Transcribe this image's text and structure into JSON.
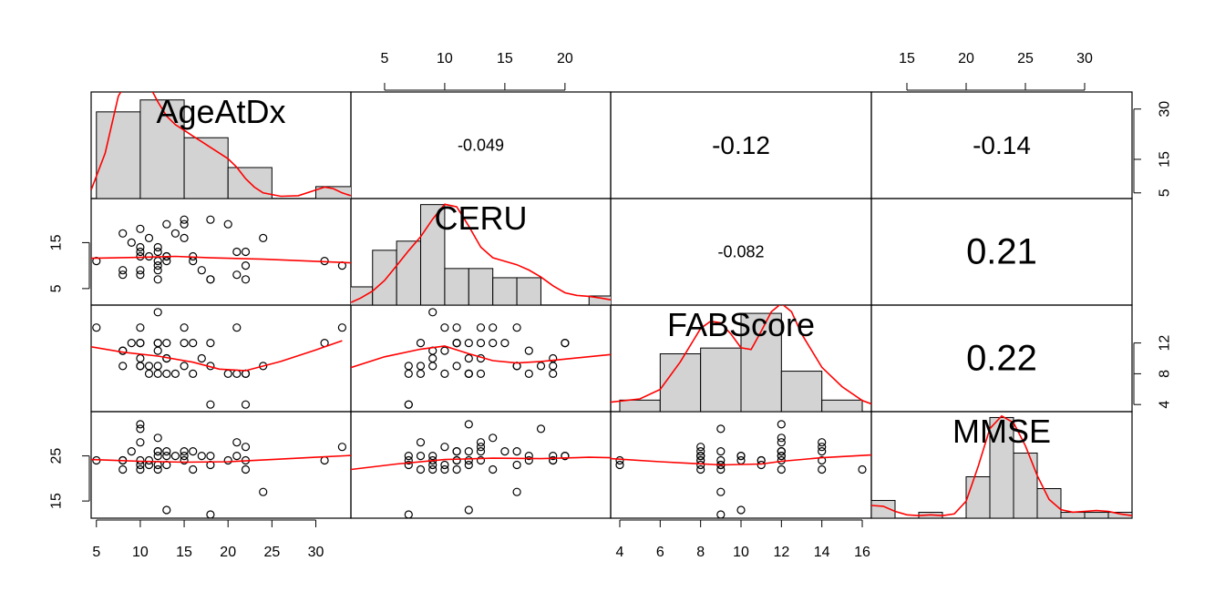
{
  "chart_data": {
    "type": "scatter-matrix",
    "variables": [
      {
        "name": "AgeAtDx",
        "range": [
          4.4,
          34.0
        ]
      },
      {
        "name": "CERU",
        "range": [
          2.2,
          23.8
        ]
      },
      {
        "name": "FABScore",
        "range": [
          3.55,
          16.45
        ]
      },
      {
        "name": "MMSE",
        "range": [
          12.0,
          34.0
        ]
      }
    ],
    "axis_ticks": {
      "AgeAtDx": {
        "values": [
          5,
          10,
          15,
          20,
          25,
          30
        ],
        "labels": [
          "5",
          "10",
          "15",
          "20",
          "25",
          "30"
        ]
      },
      "CERU": {
        "values": [
          5,
          10,
          15,
          20
        ],
        "labels": [
          "5",
          "10",
          "15",
          "20"
        ]
      },
      "FABScore": {
        "values": [
          4,
          6,
          8,
          10,
          12,
          14,
          16
        ],
        "labels": [
          "4",
          "6",
          "8",
          "10",
          "12",
          "14",
          "16"
        ]
      },
      "MMSE": {
        "values": [
          15,
          20,
          25,
          30
        ],
        "labels": [
          "15",
          "20",
          "25",
          "30"
        ]
      }
    },
    "side_ticks": {
      "AgeAtDx": {
        "values": [
          5,
          15,
          25
        ],
        "labels": [
          "5",
          "15",
          "25"
        ]
      },
      "CERU": {
        "values": [
          5,
          15
        ],
        "labels": [
          "5",
          "15"
        ]
      },
      "FABScore": {
        "values": [
          4,
          8,
          12
        ],
        "labels": [
          "4",
          "8",
          "12"
        ]
      },
      "MMSE": {
        "values": [
          15,
          25
        ],
        "labels": [
          "15",
          "25"
        ]
      }
    },
    "right_ticks": {
      "AgeAtDx": {
        "values": [
          5,
          15,
          30
        ],
        "labels": [
          "5",
          "15",
          "30"
        ]
      },
      "FABScore": {
        "values": [
          4,
          8,
          12
        ],
        "labels": [
          "4",
          "8",
          "12"
        ]
      }
    },
    "correlations": [
      {
        "row": 0,
        "col": 1,
        "label": "-0.049"
      },
      {
        "row": 0,
        "col": 2,
        "label": "-0.12"
      },
      {
        "row": 0,
        "col": 3,
        "label": "-0.14"
      },
      {
        "row": 1,
        "col": 2,
        "label": "-0.082"
      },
      {
        "row": 1,
        "col": 3,
        "label": "0.21"
      },
      {
        "row": 2,
        "col": 3,
        "label": "0.22"
      }
    ],
    "histograms": [
      {
        "breaks": [
          5,
          10,
          15,
          20,
          25,
          30,
          35
        ],
        "density": [
          0.0305,
          0.0347,
          0.0214,
          0.0109,
          0.0,
          0.0042
        ]
      },
      {
        "breaks": [
          2,
          4,
          6,
          8,
          10,
          12,
          14,
          16,
          18,
          20,
          22,
          24
        ],
        "density": [
          0.0208,
          0.0625,
          0.0729,
          0.1146,
          0.0417,
          0.0417,
          0.0312,
          0.0312,
          0.0,
          0.0,
          0.0104
        ]
      },
      {
        "breaks": [
          4,
          6,
          8,
          10,
          12,
          14,
          16
        ],
        "density": [
          0.0208,
          0.1042,
          0.1146,
          0.1771,
          0.0729,
          0.0208
        ]
      },
      {
        "breaks": [
          12,
          14,
          16,
          18,
          20,
          22,
          24,
          26,
          28,
          30,
          32,
          34
        ],
        "density": [
          0.0208,
          0.0,
          0.0069,
          0.0,
          0.0486,
          0.1181,
          0.0764,
          0.0347,
          0.0069,
          0.0069,
          0.0069
        ]
      }
    ],
    "density_curves": [
      [
        [
          4.4,
          0.003
        ],
        [
          6,
          0.016
        ],
        [
          7.5,
          0.036
        ],
        [
          9,
          0.044
        ],
        [
          10,
          0.044
        ],
        [
          11,
          0.04
        ],
        [
          12,
          0.034
        ],
        [
          13,
          0.029
        ],
        [
          14,
          0.026
        ],
        [
          15,
          0.024
        ],
        [
          16,
          0.022
        ],
        [
          17,
          0.02
        ],
        [
          18,
          0.018
        ],
        [
          19,
          0.016
        ],
        [
          20,
          0.014
        ],
        [
          21,
          0.011
        ],
        [
          22,
          0.007
        ],
        [
          23,
          0.004
        ],
        [
          24,
          0.002
        ],
        [
          26,
          0.0008
        ],
        [
          28,
          0.001
        ],
        [
          30,
          0.003
        ],
        [
          31,
          0.004
        ],
        [
          32,
          0.0035
        ],
        [
          33,
          0.002
        ],
        [
          34,
          0.001
        ]
      ],
      [
        [
          2.2,
          0.003
        ],
        [
          3,
          0.008
        ],
        [
          4,
          0.016
        ],
        [
          5,
          0.028
        ],
        [
          6,
          0.045
        ],
        [
          7,
          0.062
        ],
        [
          8,
          0.078
        ],
        [
          9,
          0.098
        ],
        [
          10,
          0.115
        ],
        [
          11,
          0.112
        ],
        [
          12,
          0.09
        ],
        [
          13,
          0.066
        ],
        [
          14,
          0.054
        ],
        [
          15,
          0.05
        ],
        [
          16,
          0.046
        ],
        [
          17,
          0.04
        ],
        [
          18,
          0.032
        ],
        [
          19,
          0.022
        ],
        [
          20,
          0.014
        ],
        [
          21,
          0.011
        ],
        [
          22,
          0.01
        ],
        [
          23,
          0.008
        ],
        [
          23.8,
          0.006
        ]
      ],
      [
        [
          3.55,
          0.017
        ],
        [
          5,
          0.023
        ],
        [
          6,
          0.04
        ],
        [
          7,
          0.09
        ],
        [
          8,
          0.15
        ],
        [
          8.5,
          0.163
        ],
        [
          9,
          0.16
        ],
        [
          9.5,
          0.14
        ],
        [
          10,
          0.115
        ],
        [
          10.5,
          0.112
        ],
        [
          11,
          0.145
        ],
        [
          11.5,
          0.18
        ],
        [
          12,
          0.195
        ],
        [
          12.5,
          0.18
        ],
        [
          13,
          0.14
        ],
        [
          14,
          0.08
        ],
        [
          15,
          0.045
        ],
        [
          16,
          0.02
        ],
        [
          16.45,
          0.014
        ]
      ],
      [
        [
          12,
          0.015
        ],
        [
          13,
          0.014
        ],
        [
          14,
          0.008
        ],
        [
          15,
          0.004
        ],
        [
          16,
          0.003
        ],
        [
          17,
          0.004
        ],
        [
          18,
          0.003
        ],
        [
          19,
          0.005
        ],
        [
          20,
          0.02
        ],
        [
          21,
          0.06
        ],
        [
          22,
          0.105
        ],
        [
          23,
          0.12
        ],
        [
          24,
          0.112
        ],
        [
          25,
          0.085
        ],
        [
          26,
          0.05
        ],
        [
          27,
          0.022
        ],
        [
          28,
          0.01
        ],
        [
          29,
          0.007
        ],
        [
          30,
          0.008
        ],
        [
          31,
          0.009
        ],
        [
          32,
          0.008
        ],
        [
          33,
          0.005
        ],
        [
          34,
          0.003
        ]
      ]
    ],
    "hist_ymax": [
      0.0375,
      0.1215,
      0.192,
      0.125
    ],
    "observations": [
      [
        8,
        17,
        11,
        24
      ],
      [
        5,
        11,
        14,
        24
      ],
      [
        8,
        9,
        11,
        24
      ],
      [
        8,
        8,
        9,
        22
      ],
      [
        9,
        15,
        12,
        26
      ],
      [
        10,
        12,
        12,
        32
      ],
      [
        10,
        18,
        9,
        31
      ],
      [
        10,
        13,
        10,
        24
      ],
      [
        10,
        14,
        14,
        22
      ],
      [
        10,
        9,
        9,
        23
      ],
      [
        10,
        8,
        12,
        28
      ],
      [
        11,
        12,
        8,
        24
      ],
      [
        11,
        16,
        9,
        23
      ],
      [
        12,
        7,
        8,
        25
      ],
      [
        12,
        13,
        12,
        26
      ],
      [
        12,
        14,
        12,
        29
      ],
      [
        12,
        11,
        9,
        26
      ],
      [
        12,
        9,
        16,
        22
      ],
      [
        12,
        10,
        11,
        23
      ],
      [
        13,
        19,
        10,
        25
      ],
      [
        13,
        11,
        12,
        26
      ],
      [
        13,
        12,
        10,
        13
      ],
      [
        13,
        12,
        8,
        23
      ],
      [
        14,
        17,
        8,
        25
      ],
      [
        15,
        20,
        12,
        25
      ],
      [
        15,
        16,
        14,
        26
      ],
      [
        15,
        19,
        9,
        24
      ],
      [
        16,
        11,
        12,
        22
      ],
      [
        16,
        12,
        8,
        26
      ],
      [
        17,
        9,
        10,
        25
      ],
      [
        18,
        7,
        9,
        12
      ],
      [
        18,
        7,
        4,
        23
      ],
      [
        18,
        20,
        12,
        25
      ],
      [
        20,
        19,
        8,
        24
      ],
      [
        21,
        8,
        8,
        25
      ],
      [
        21,
        13,
        14,
        28
      ],
      [
        22,
        13,
        8,
        27
      ],
      [
        22,
        10,
        8,
        22
      ],
      [
        22,
        7,
        4,
        24
      ],
      [
        24,
        16,
        9,
        17
      ],
      [
        31,
        11,
        12,
        24
      ],
      [
        33,
        10,
        14,
        27
      ]
    ],
    "smooth_lines": {
      "1_0": [
        [
          4.4,
          11.6
        ],
        [
          10,
          11.8
        ],
        [
          14,
          12.0
        ],
        [
          18,
          11.7
        ],
        [
          24,
          11.4
        ],
        [
          34,
          10.6
        ]
      ],
      "2_0": [
        [
          4.4,
          11.5
        ],
        [
          8,
          10.8
        ],
        [
          12,
          10.3
        ],
        [
          16,
          9.5
        ],
        [
          19,
          8.6
        ],
        [
          22,
          8.4
        ],
        [
          26,
          9.6
        ],
        [
          30,
          11.1
        ],
        [
          33,
          12.3
        ]
      ],
      "2_1": [
        [
          2.2,
          8.8
        ],
        [
          5,
          10.2
        ],
        [
          8,
          11.2
        ],
        [
          10,
          11.6
        ],
        [
          12,
          10.6
        ],
        [
          14,
          9.7
        ],
        [
          16,
          9.4
        ],
        [
          18,
          9.6
        ],
        [
          20,
          9.9
        ],
        [
          23.8,
          10.5
        ]
      ],
      "3_0": [
        [
          4.4,
          24.2
        ],
        [
          10,
          23.8
        ],
        [
          15,
          23.6
        ],
        [
          20,
          23.7
        ],
        [
          25,
          24.2
        ],
        [
          30,
          24.7
        ],
        [
          34,
          25.1
        ]
      ],
      "3_1": [
        [
          2.2,
          22.0
        ],
        [
          6,
          23.2
        ],
        [
          10,
          24.2
        ],
        [
          14,
          24.5
        ],
        [
          18,
          24.4
        ],
        [
          22,
          24.7
        ],
        [
          23.8,
          24.6
        ]
      ],
      "3_2": [
        [
          3.55,
          24.4
        ],
        [
          6,
          23.7
        ],
        [
          9,
          23.0
        ],
        [
          11,
          23.2
        ],
        [
          12,
          23.8
        ],
        [
          14,
          24.6
        ],
        [
          16.45,
          25.2
        ]
      ]
    },
    "colors": {
      "hist_fill": "#d3d3d3",
      "line": "#ff0000",
      "frame": "#000000"
    }
  }
}
